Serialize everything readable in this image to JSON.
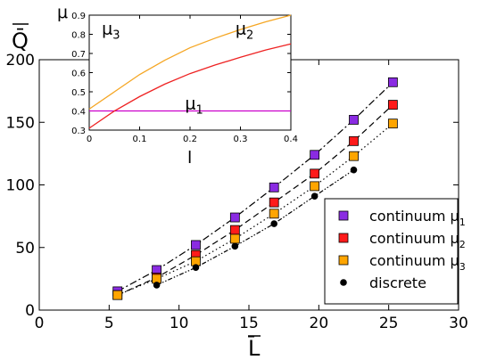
{
  "chart_data": [
    {
      "type": "scatter",
      "xlabel": "L̄",
      "ylabel": "Q̄",
      "xlim": [
        0,
        30
      ],
      "ylim": [
        0,
        200
      ],
      "x_ticks": [
        0,
        5,
        10,
        15,
        20,
        25,
        30
      ],
      "y_ticks": [
        0,
        50,
        100,
        150,
        200
      ],
      "grid": false,
      "legend_position": "bottom-right",
      "series": [
        {
          "name": "continuum μ1",
          "legend_main": "continuum μ",
          "legend_sub": "1",
          "marker": "square",
          "color": "#8a2be2",
          "line_style": "dash-dot",
          "x": [
            5.6,
            8.4,
            11.2,
            14.0,
            16.8,
            19.7,
            22.5,
            25.3
          ],
          "y": [
            15,
            32,
            52,
            74,
            98,
            124,
            152,
            182
          ]
        },
        {
          "name": "continuum μ2",
          "legend_main": "continuum μ",
          "legend_sub": "2",
          "marker": "square",
          "color": "#ff1a1a",
          "line_style": "dashed",
          "x": [
            5.6,
            8.4,
            11.2,
            14.0,
            16.8,
            19.7,
            22.5,
            25.3
          ],
          "y": [
            12,
            26,
            44,
            64,
            86,
            109,
            135,
            164
          ]
        },
        {
          "name": "continuum μ3",
          "legend_main": "continuum μ",
          "legend_sub": "3",
          "marker": "square",
          "color": "#ffa500",
          "line_style": "dotted",
          "x": [
            5.6,
            8.4,
            11.2,
            14.0,
            16.8,
            19.7,
            22.5,
            25.3
          ],
          "y": [
            12,
            25,
            39,
            57,
            77,
            99,
            123,
            149
          ]
        },
        {
          "name": "discrete",
          "legend_main": "discrete",
          "legend_sub": "",
          "marker": "circle",
          "color": "#000000",
          "line_style": "dash-dot-dot",
          "x": [
            8.4,
            11.2,
            14.0,
            16.8,
            19.7,
            22.5
          ],
          "y": [
            20,
            34,
            51,
            69,
            91,
            112
          ]
        }
      ]
    },
    {
      "type": "line",
      "xlabel": "l",
      "ylabel": "μ",
      "xlim": [
        0,
        0.4
      ],
      "ylim": [
        0.3,
        0.9
      ],
      "x_ticks": [
        0,
        0.1,
        0.2,
        0.3,
        0.4
      ],
      "x_tick_labels": [
        "0",
        "0.1",
        "0.2",
        "0.3",
        "0.4"
      ],
      "y_ticks": [
        0.3,
        0.4,
        0.5,
        0.6,
        0.7,
        0.8,
        0.9
      ],
      "y_tick_labels": [
        "0.3",
        "0.4",
        "0.5",
        "0.6",
        "0.7",
        "0.8",
        "0.9"
      ],
      "grid": false,
      "series": [
        {
          "name": "μ1",
          "color": "#cc00cc",
          "x": [
            0,
            0.05,
            0.1,
            0.15,
            0.2,
            0.25,
            0.3,
            0.35,
            0.4
          ],
          "y": [
            0.4,
            0.4,
            0.4,
            0.4,
            0.4,
            0.4,
            0.4,
            0.4,
            0.4
          ]
        },
        {
          "name": "μ2",
          "color": "#ee2222",
          "x": [
            0,
            0.05,
            0.1,
            0.15,
            0.2,
            0.25,
            0.3,
            0.35,
            0.4
          ],
          "y": [
            0.31,
            0.4,
            0.475,
            0.54,
            0.595,
            0.64,
            0.68,
            0.718,
            0.75
          ]
        },
        {
          "name": "μ3",
          "color": "#f5a623",
          "x": [
            0,
            0.05,
            0.1,
            0.15,
            0.2,
            0.25,
            0.3,
            0.35,
            0.4
          ],
          "y": [
            0.41,
            0.5,
            0.59,
            0.665,
            0.73,
            0.78,
            0.825,
            0.865,
            0.9
          ]
        }
      ],
      "curve_labels": [
        {
          "series": "μ3",
          "main": "μ",
          "sub": "3",
          "x": 0.025,
          "y": 0.8
        },
        {
          "series": "μ2",
          "main": "μ",
          "sub": "2",
          "x": 0.29,
          "y": 0.8
        },
        {
          "series": "μ1",
          "main": "μ",
          "sub": "1",
          "x": 0.19,
          "y": 0.41
        }
      ]
    }
  ]
}
